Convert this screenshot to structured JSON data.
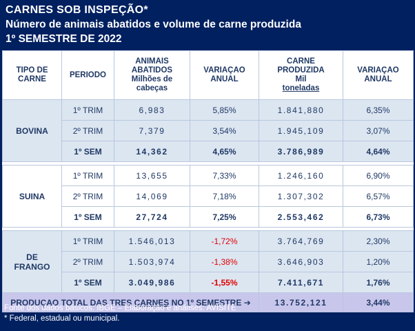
{
  "title": {
    "line1": "CARNES SOB INSPEÇÃO*",
    "line2": "Número de animais abatidos e volume de carne produzida",
    "line3": "1º SEMESTRE DE 2022"
  },
  "columns": {
    "tipo": "TIPO DE CARNE",
    "periodo": "PERIODO",
    "animais_l1": "ANIMAIS",
    "animais_l2": "ABATIDOS",
    "animais_l3": "Milhões de",
    "animais_l4": "cabeças",
    "var1": "VARIAÇAO ANUAL",
    "carne_l1": "CARNE",
    "carne_l2": "PRODUZIDA",
    "carne_l3": "Mil",
    "carne_l4": "toneladas",
    "var2": "VARIAÇAO ANUAL"
  },
  "groups": [
    {
      "name": "BOVINA",
      "rows": [
        {
          "periodo": "1º TRIM",
          "animais": "6,983",
          "var_animais": "5,85%",
          "carne": "1.841,880",
          "var_carne": "6,35%"
        },
        {
          "periodo": "2º TRIM",
          "animais": "7,379",
          "var_animais": "3,54%",
          "carne": "1.945,109",
          "var_carne": "3,07%"
        },
        {
          "periodo": "1º SEM",
          "animais": "14,362",
          "var_animais": "4,65%",
          "carne": "3.786,989",
          "var_carne": "4,64%"
        }
      ]
    },
    {
      "name": "SUINA",
      "rows": [
        {
          "periodo": "1º TRIM",
          "animais": "13,655",
          "var_animais": "7,33%",
          "carne": "1.246,160",
          "var_carne": "6,90%"
        },
        {
          "periodo": "2º TRIM",
          "animais": "14,069",
          "var_animais": "7,18%",
          "carne": "1.307,302",
          "var_carne": "6,57%"
        },
        {
          "periodo": "1º SEM",
          "animais": "27,724",
          "var_animais": "7,25%",
          "carne": "2.553,462",
          "var_carne": "6,73%"
        }
      ]
    },
    {
      "name_l1": "DE",
      "name_l2": "FRANGO",
      "rows": [
        {
          "periodo": "1º TRIM",
          "animais": "1.546,013",
          "var_animais": "-1,72%",
          "carne": "3.764,769",
          "var_carne": "2,30%"
        },
        {
          "periodo": "2º TRIM",
          "animais": "1.503,974",
          "var_animais": "-1,38%",
          "carne": "3.646,903",
          "var_carne": "1,20%"
        },
        {
          "periodo": "1º SEM",
          "animais": "3.049,986",
          "var_animais": "-1,55%",
          "carne": "7.411,671",
          "var_carne": "1,76%"
        }
      ]
    }
  ],
  "total": {
    "label_pre": "PRODUÇAO TOTAL DAS TRES ",
    "label_carnes": "CARNES",
    "label_post": " NO 1º SEMESTRE",
    "arrow": "➔",
    "value": "13.752,121",
    "variation": "3,44%"
  },
  "footer": {
    "line1": "Fonte dos dados básicos: IBGE – Elaboração e análises: AVISITE",
    "line2": "* Federal, estadual ou municipal."
  },
  "colors": {
    "navy": "#002060",
    "light_blue": "#dce6f1",
    "lavender": "#c9c6ec",
    "negative": "#e00000"
  }
}
